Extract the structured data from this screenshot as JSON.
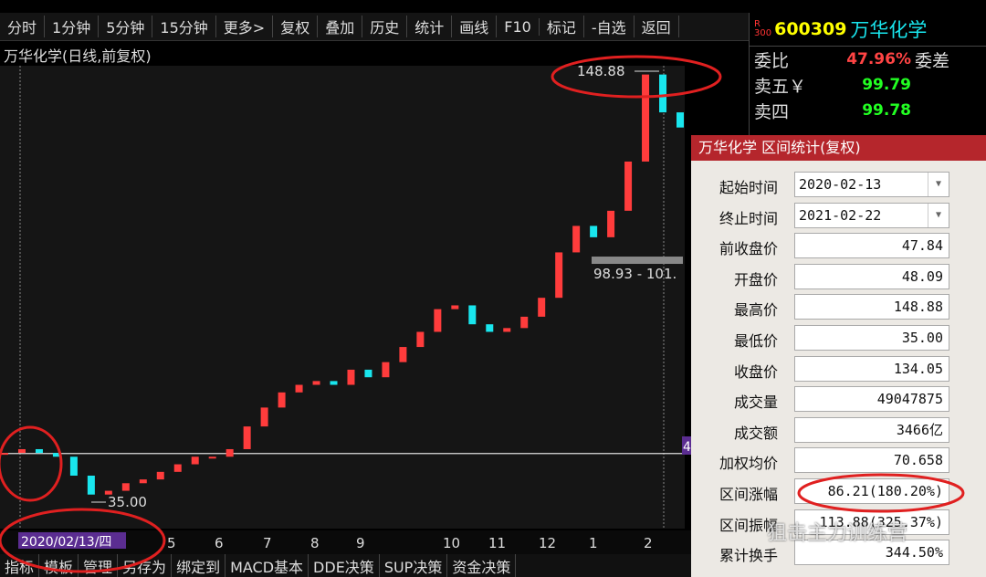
{
  "toolbar": {
    "items": [
      "分时",
      "1分钟",
      "5分钟",
      "15分钟",
      "更多>",
      "复权",
      "叠加",
      "历史",
      "统计",
      "画线",
      "F10",
      "标记",
      "-自选",
      "返回"
    ]
  },
  "chart": {
    "title": "万华化学(日线,前复权)",
    "ylim": [
      25.35,
      149.6
    ],
    "prices": [
      48,
      49,
      48,
      47,
      42,
      37,
      38,
      40,
      41,
      43,
      45,
      47,
      47,
      49,
      55,
      60,
      64,
      66,
      67,
      66,
      70,
      68,
      72,
      76,
      80,
      86,
      87,
      82,
      80,
      81,
      84,
      89,
      101,
      108,
      105,
      112,
      125,
      148,
      138,
      134
    ],
    "up_color": "#ff3c3c",
    "down_color": "#19e6ee",
    "ref_line": 47.84,
    "high": {
      "value": 148.88,
      "label": "148.88"
    },
    "low": {
      "value": 35.0,
      "label": "35.00"
    },
    "range": {
      "value": 98.93,
      "label": "98.93 - 101."
    },
    "date_label": "2020/02/13/四",
    "right_marker": "4",
    "months": [
      "5",
      "6",
      "7",
      "8",
      "9",
      "10",
      "11",
      "12",
      "1",
      "2"
    ]
  },
  "quote": {
    "badge": "R",
    "badge_num": "300",
    "code": "600309",
    "name": "万华化学",
    "rows": [
      {
        "label": "委比",
        "value": "47.96%",
        "extra": "委差"
      },
      {
        "label": "卖五￥",
        "value": "99.79"
      },
      {
        "label": "卖四",
        "value": "99.78"
      }
    ]
  },
  "dialog": {
    "title": "万华化学 区间统计(复权)",
    "rows": [
      {
        "label": "起始时间",
        "value": "2020-02-13",
        "kind": "date"
      },
      {
        "label": "终止时间",
        "value": "2021-02-22",
        "kind": "date"
      },
      {
        "label": "前收盘价",
        "value": "47.84"
      },
      {
        "label": "开盘价",
        "value": "48.09"
      },
      {
        "label": "最高价",
        "value": "148.88"
      },
      {
        "label": "最低价",
        "value": "35.00"
      },
      {
        "label": "收盘价",
        "value": "134.05"
      },
      {
        "label": "成交量",
        "value": "49047875"
      },
      {
        "label": "成交额",
        "value": "3466亿"
      },
      {
        "label": "加权均价",
        "value": "70.658"
      },
      {
        "label": "区间涨幅",
        "value": "86.21(180.20%)"
      },
      {
        "label": "区间振幅",
        "value": "113.88(325.37%)"
      },
      {
        "label": "累计换手",
        "value": "344.50%"
      }
    ]
  },
  "tabs": [
    "指标",
    "模板",
    "管理",
    "另存为",
    "绑定到",
    "MACD基本",
    "DDE决策",
    "SUP决策",
    "资金决策"
  ],
  "watermark": "狙击主力训练营"
}
